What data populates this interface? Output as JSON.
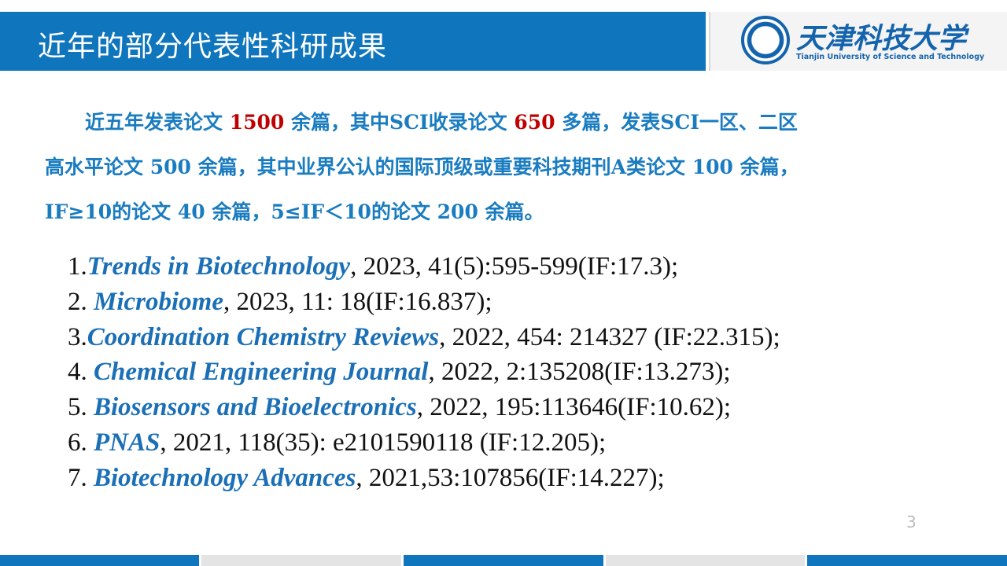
{
  "header": {
    "title": "近年的部分代表性科研成果",
    "logo_name": "天津科技大学",
    "logo_subtitle": "Tianjin University of Science and Technology"
  },
  "summary": {
    "lines": [
      [
        {
          "text": "近五年发表论文 ",
          "color": "#1a7cc0"
        },
        {
          "text": "1500",
          "color": "#c00000"
        },
        {
          "text": " 余篇，其中SCI收录论文 ",
          "color": "#1a7cc0"
        },
        {
          "text": "650",
          "color": "#c00000"
        },
        {
          "text": " 多篇，发表SCI一区、二区",
          "color": "#1a7cc0"
        }
      ],
      [
        {
          "text": "高水平论文 500 余篇，其中业界公认的国际顶级或重要科技期刊A类论文 100 余篇，",
          "color": "#1a7cc0"
        }
      ],
      [
        {
          "text": "IF≥10的论文 40 余篇，5≤IF＜10的论文 200 余篇。",
          "color": "#1a7cc0"
        }
      ]
    ]
  },
  "papers": [
    {
      "number": "1.",
      "journal": "Trends in Biotechnology",
      "details": ", 2023, 41(5):595-599(IF:17.3);"
    },
    {
      "number": "2. ",
      "journal": "Microbiome",
      "details": ", 2023, 11: 18(IF:16.837);"
    },
    {
      "number": "3.",
      "journal": "Coordination Chemistry Reviews",
      "details": ", 2022, 454: 214327 (IF:22.315);"
    },
    {
      "number": "4. ",
      "journal": "Chemical Engineering Journal",
      "details": ", 2022, 2:135208(IF:13.273);"
    },
    {
      "number": "5. ",
      "journal": "Biosensors and Bioelectronics",
      "details": ", 2022, 195:113646(IF:10.62);"
    },
    {
      "number": "6. ",
      "journal": "PNAS",
      "details": ", 2021, 118(35): e2101590118 (IF:12.205);"
    },
    {
      "number": "7. ",
      "journal": "Biotechnology Advances",
      "details": ", 2021,53:107856(IF:14.227);"
    }
  ],
  "page_number": "3"
}
